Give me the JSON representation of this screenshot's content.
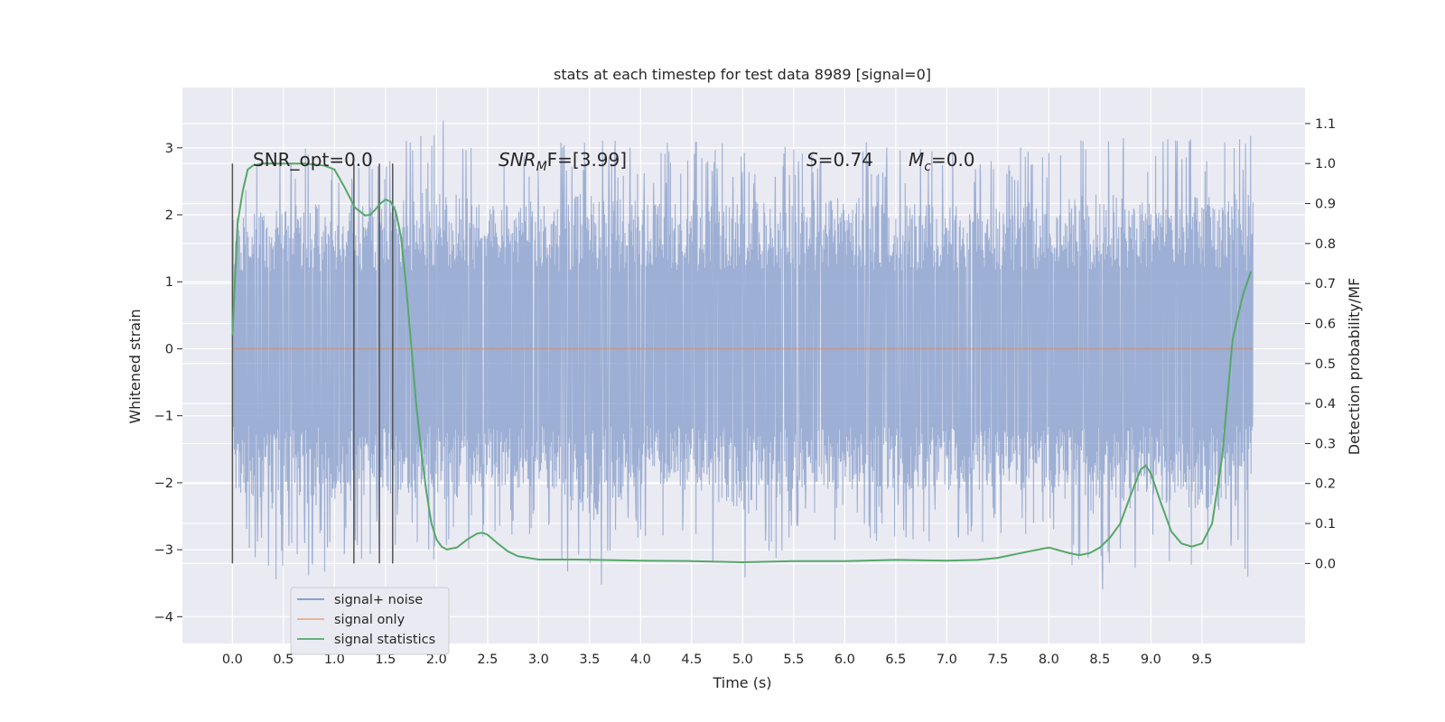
{
  "chart_data": {
    "type": "line",
    "title": "stats at each timestep for test data 8989 [signal=0]",
    "xlabel": "Time (s)",
    "ylabel_left": "Whitened strain",
    "ylabel_right": "Detection probability/MF",
    "xlim": [
      -0.49,
      10.51
    ],
    "ylim_left": [
      -4.4,
      3.9
    ],
    "ylim_right": [
      -0.2,
      1.19
    ],
    "x_ticks": [
      "0.0",
      "0.5",
      "1.0",
      "1.5",
      "2.0",
      "2.5",
      "3.0",
      "3.5",
      "4.0",
      "4.5",
      "5.0",
      "5.5",
      "6.0",
      "6.5",
      "7.0",
      "7.5",
      "8.0",
      "8.5",
      "9.0",
      "9.5"
    ],
    "y_ticks_left": [
      "3",
      "2",
      "1",
      "0",
      "−1",
      "−2",
      "−3",
      "−4"
    ],
    "y_ticks_right": [
      "1.1",
      "1.0",
      "0.9",
      "0.8",
      "0.7",
      "0.6",
      "0.5",
      "0.4",
      "0.3",
      "0.2",
      "0.1",
      "0.0"
    ],
    "grid": true,
    "legend": {
      "position": "lower-left",
      "entries": [
        "signal+ noise",
        "signal only",
        "signal statistics"
      ]
    },
    "colors": {
      "noise": "#7c95c7",
      "signal": "#dd8452",
      "stats": "#55a868",
      "vlines": "#555555",
      "background": "#eaeaf2"
    },
    "annotations": {
      "snr_opt": "SNR_opt=0.0",
      "snr_mf_label": "SNR",
      "snr_mf_sub": "M",
      "snr_mf_value": "F=[3.99]",
      "s_label": "S",
      "s_value": "=0.74",
      "mc_label": "M",
      "mc_sub": "c",
      "mc_value": "=0.0"
    },
    "vertical_lines_x": [
      0.0,
      1.19,
      1.44,
      1.57
    ],
    "series": [
      {
        "name": "signal+ noise",
        "axis": "left",
        "envelope_x": [
          0.0,
          0.5,
          1.0,
          1.5,
          2.0,
          2.5,
          3.0,
          3.5,
          4.0,
          4.5,
          5.0,
          5.5,
          6.0,
          6.5,
          7.0,
          7.5,
          8.0,
          8.5,
          9.0,
          9.5,
          10.0
        ],
        "envelope_max": [
          2.6,
          3.0,
          3.0,
          2.9,
          3.55,
          3.0,
          3.1,
          3.35,
          3.05,
          3.1,
          3.1,
          3.0,
          3.25,
          3.0,
          3.0,
          3.05,
          3.05,
          3.35,
          3.1,
          3.25,
          3.35
        ],
        "envelope_min": [
          -3.1,
          -3.6,
          -3.3,
          -3.0,
          -3.25,
          -2.9,
          -2.8,
          -3.8,
          -2.8,
          -2.9,
          -3.65,
          -2.9,
          -2.9,
          -2.9,
          -2.9,
          -2.9,
          -3.0,
          -3.65,
          -3.2,
          -3.45,
          -3.45
        ]
      },
      {
        "name": "signal only",
        "axis": "left",
        "x": [
          0.0,
          10.0
        ],
        "y": [
          0.0,
          0.0
        ]
      },
      {
        "name": "signal statistics",
        "axis": "right",
        "x": [
          0.0,
          0.05,
          0.1,
          0.15,
          0.2,
          0.3,
          0.5,
          0.7,
          0.9,
          1.0,
          1.1,
          1.2,
          1.3,
          1.35,
          1.4,
          1.45,
          1.5,
          1.55,
          1.6,
          1.65,
          1.7,
          1.75,
          1.8,
          1.85,
          1.9,
          1.95,
          2.0,
          2.05,
          2.1,
          2.2,
          2.3,
          2.4,
          2.45,
          2.5,
          2.6,
          2.7,
          2.8,
          3.0,
          3.4,
          4.0,
          4.5,
          5.0,
          5.5,
          6.0,
          6.5,
          7.0,
          7.3,
          7.5,
          7.8,
          8.0,
          8.2,
          8.3,
          8.4,
          8.5,
          8.6,
          8.7,
          8.8,
          8.9,
          8.95,
          9.0,
          9.1,
          9.2,
          9.3,
          9.4,
          9.5,
          9.6,
          9.7,
          9.8,
          9.9,
          9.98
        ],
        "y": [
          0.57,
          0.85,
          0.93,
          0.985,
          0.995,
          1.0,
          1.0,
          1.0,
          0.995,
          0.985,
          0.94,
          0.89,
          0.87,
          0.872,
          0.885,
          0.9,
          0.91,
          0.905,
          0.88,
          0.82,
          0.7,
          0.55,
          0.4,
          0.28,
          0.18,
          0.1,
          0.06,
          0.042,
          0.035,
          0.04,
          0.06,
          0.075,
          0.077,
          0.072,
          0.05,
          0.03,
          0.018,
          0.01,
          0.01,
          0.007,
          0.006,
          0.003,
          0.006,
          0.006,
          0.009,
          0.007,
          0.009,
          0.014,
          0.03,
          0.04,
          0.026,
          0.021,
          0.026,
          0.04,
          0.065,
          0.1,
          0.17,
          0.235,
          0.245,
          0.225,
          0.15,
          0.08,
          0.05,
          0.042,
          0.05,
          0.1,
          0.27,
          0.56,
          0.67,
          0.73
        ]
      }
    ]
  }
}
